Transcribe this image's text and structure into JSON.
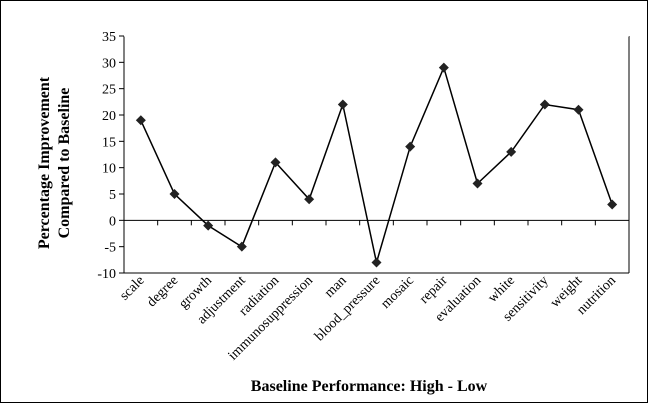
{
  "chart_data": {
    "type": "line",
    "title": "",
    "xlabel": "Baseline Performance: High - Low",
    "ylabel_lines": [
      "Percentage Improvement",
      "Compared to Baseline"
    ],
    "categories": [
      "scale",
      "degree",
      "growth",
      "adjustment",
      "radiation",
      "immunosuppression",
      "man",
      "blood_pressure",
      "mosaic",
      "repair",
      "evaluation",
      "white",
      "sensitivity",
      "weight",
      "nutrition"
    ],
    "series": [
      {
        "values": [
          19,
          5,
          -1,
          -5,
          11,
          4,
          22,
          -8,
          14,
          29,
          7,
          13,
          22,
          21,
          3
        ]
      }
    ],
    "ylim": [
      -10,
      35
    ],
    "yticks": [
      -10,
      -5,
      0,
      5,
      10,
      15,
      20,
      25,
      30,
      35
    ],
    "grid": false,
    "legend": "none",
    "colors": {
      "line": "#000000",
      "marker": "#222222",
      "axis": "#000000"
    }
  }
}
